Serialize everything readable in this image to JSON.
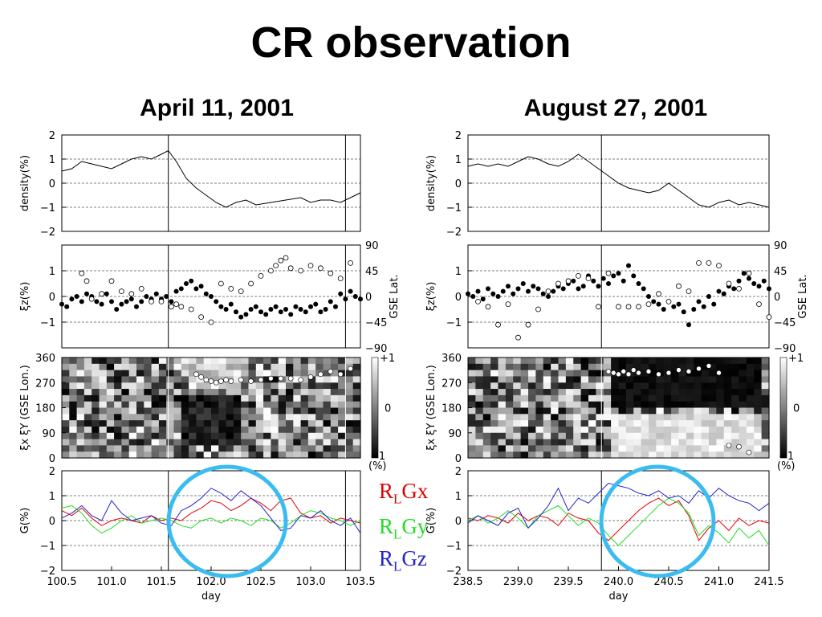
{
  "title": "CR observation",
  "columns": [
    {
      "title": "April 11, 2001"
    },
    {
      "title": "August 27, 2001"
    }
  ],
  "legend": [
    {
      "prefix": "R",
      "sub": "L",
      "suffix": "Gx",
      "color": "#e00000"
    },
    {
      "prefix": "R",
      "sub": "L",
      "suffix": "Gy",
      "color": "#22dd22"
    },
    {
      "prefix": "R",
      "sub": "L",
      "suffix": "Gz",
      "color": "#2222cc"
    }
  ],
  "colors": {
    "circle": "#3bbcf0"
  },
  "chart_data": [
    {
      "type": "line",
      "panel": "density",
      "ylabel": "density(%)",
      "ylim": [
        -2,
        2
      ],
      "yticks": [
        2,
        1,
        0,
        -1,
        -2
      ],
      "xlim": [
        100.5,
        103.5
      ],
      "vlines": [
        101.57,
        103.35
      ],
      "x": [
        100.5,
        100.6,
        100.7,
        100.8,
        100.9,
        101.0,
        101.1,
        101.2,
        101.3,
        101.4,
        101.5,
        101.57,
        101.65,
        101.75,
        101.85,
        101.95,
        102.05,
        102.15,
        102.25,
        102.35,
        102.45,
        102.6,
        102.75,
        102.9,
        103.0,
        103.1,
        103.2,
        103.3,
        103.4,
        103.5
      ],
      "y": [
        0.5,
        0.6,
        0.9,
        0.8,
        0.7,
        0.6,
        0.8,
        1.0,
        1.1,
        1.0,
        1.2,
        1.35,
        0.9,
        0.2,
        -0.2,
        -0.5,
        -0.8,
        -1.0,
        -0.8,
        -0.7,
        -0.9,
        -0.8,
        -0.7,
        -0.6,
        -0.8,
        -0.7,
        -0.7,
        -0.8,
        -0.6,
        -0.4
      ]
    },
    {
      "type": "scatter",
      "panel": "xi_z",
      "ylabel": "ξz(%)",
      "y2label": "GSE Lat.",
      "ylim": [
        -2,
        2
      ],
      "yticks": [
        1,
        0,
        -1
      ],
      "y2ticks": [
        "90",
        "45",
        "0",
        "−45",
        "−90"
      ],
      "xlim": [
        100.5,
        103.5
      ],
      "vlines": [
        101.57,
        103.35
      ],
      "filled": {
        "x": [
          100.5,
          100.55,
          100.6,
          100.65,
          100.7,
          100.75,
          100.8,
          100.85,
          100.9,
          100.95,
          101.0,
          101.05,
          101.1,
          101.15,
          101.2,
          101.25,
          101.3,
          101.35,
          101.4,
          101.45,
          101.5,
          101.55,
          101.6,
          101.65,
          101.7,
          101.75,
          101.8,
          101.85,
          101.9,
          101.95,
          102.0,
          102.05,
          102.1,
          102.15,
          102.2,
          102.25,
          102.3,
          102.35,
          102.4,
          102.45,
          102.5,
          102.55,
          102.6,
          102.65,
          102.7,
          102.75,
          102.8,
          102.85,
          102.9,
          102.95,
          103.0,
          103.05,
          103.1,
          103.15,
          103.2,
          103.25,
          103.3,
          103.35,
          103.4,
          103.45,
          103.5
        ],
        "y": [
          -0.3,
          -0.4,
          -0.1,
          0.0,
          -0.2,
          0.1,
          0.0,
          -0.2,
          -0.3,
          0.1,
          -0.2,
          -0.5,
          -0.3,
          -0.2,
          -0.1,
          -0.4,
          -0.2,
          0.0,
          -0.1,
          0.1,
          -0.1,
          0.0,
          -0.2,
          0.2,
          0.3,
          0.5,
          0.6,
          0.3,
          0.4,
          0.1,
          0.0,
          -0.2,
          -0.4,
          -0.5,
          -0.3,
          -0.6,
          -0.8,
          -0.7,
          -0.5,
          -0.4,
          -0.6,
          -0.7,
          -0.5,
          -0.4,
          -0.6,
          -0.5,
          -0.7,
          -0.4,
          -0.5,
          -0.6,
          -0.4,
          -0.3,
          -0.6,
          -0.5,
          -0.2,
          -0.4,
          0.1,
          -0.1,
          0.2,
          0.0,
          -0.1
        ]
      },
      "open": {
        "x": [
          100.7,
          100.75,
          100.8,
          100.9,
          101.0,
          101.1,
          101.2,
          101.3,
          101.4,
          101.5,
          101.6,
          101.65,
          101.7,
          101.8,
          101.9,
          102.0,
          102.1,
          102.2,
          102.3,
          102.4,
          102.5,
          102.6,
          102.65,
          102.7,
          102.75,
          102.8,
          102.9,
          103.0,
          103.1,
          103.2,
          103.3,
          103.4
        ],
        "y": [
          0.9,
          0.6,
          -0.1,
          0.1,
          0.6,
          0.2,
          0.1,
          0.3,
          -0.2,
          -0.2,
          -0.4,
          -0.3,
          -0.4,
          -0.5,
          -0.8,
          -1.0,
          0.5,
          0.3,
          0.2,
          0.5,
          0.8,
          1.0,
          1.2,
          1.4,
          1.5,
          1.1,
          1.0,
          1.2,
          1.1,
          0.9,
          0.7,
          1.3
        ]
      }
    },
    {
      "type": "heatmap",
      "panel": "xi_xy",
      "ylabel": "ξx ξY (GSE Lon.)",
      "ylim": [
        0,
        360
      ],
      "yticks": [
        360,
        270,
        180,
        90,
        0
      ],
      "colorbar": {
        "max": "+1",
        "mid": "0",
        "min": "−1",
        "unit": "(%)"
      },
      "xlim": [
        100.5,
        103.5
      ],
      "vlines": [
        101.57,
        103.35
      ],
      "circles": {
        "x": [
          101.85,
          101.9,
          101.95,
          102.0,
          102.05,
          102.1,
          102.15,
          102.2,
          102.3,
          102.4,
          102.5,
          102.6,
          102.7,
          102.8,
          102.9,
          103.0,
          103.1,
          103.2,
          103.3,
          103.4
        ],
        "y": [
          300,
          290,
          280,
          275,
          270,
          275,
          280,
          275,
          280,
          275,
          280,
          285,
          285,
          285,
          280,
          290,
          300,
          310,
          300,
          320
        ]
      }
    },
    {
      "type": "line",
      "panel": "G",
      "ylabel": "G(%)",
      "xlabel": "day",
      "ylim": [
        -2,
        2
      ],
      "yticks": [
        2,
        1,
        0,
        -1,
        -2
      ],
      "xlim": [
        100.5,
        103.5
      ],
      "xticks": [
        "100.5",
        "101.0",
        "101.5",
        "102.0",
        "102.5",
        "103.0",
        "103.5"
      ],
      "vlines": [
        101.57,
        103.35
      ],
      "x": [
        100.5,
        100.6,
        100.7,
        100.8,
        100.9,
        101.0,
        101.1,
        101.2,
        101.3,
        101.4,
        101.5,
        101.6,
        101.7,
        101.8,
        101.9,
        102.0,
        102.1,
        102.2,
        102.3,
        102.4,
        102.5,
        102.6,
        102.7,
        102.8,
        102.9,
        103.0,
        103.1,
        103.2,
        103.3,
        103.4,
        103.5
      ],
      "series": [
        {
          "name": "RLGx",
          "values": [
            0.4,
            0.2,
            0.5,
            0.1,
            -0.2,
            0.0,
            0.1,
            0.0,
            -0.1,
            0.2,
            0.0,
            0.1,
            0.0,
            0.3,
            0.5,
            0.8,
            0.7,
            0.4,
            0.6,
            0.9,
            0.7,
            0.4,
            0.8,
            0.9,
            0.3,
            0.1,
            0.2,
            -0.1,
            0.1,
            0.0,
            -0.1
          ]
        },
        {
          "name": "RLGy",
          "values": [
            0.5,
            0.6,
            0.3,
            -0.2,
            -0.5,
            -0.3,
            0.0,
            0.2,
            -0.1,
            0.0,
            0.1,
            0.0,
            -0.2,
            -0.3,
            0.0,
            0.1,
            -0.1,
            0.1,
            0.0,
            -0.2,
            0.1,
            0.0,
            -0.3,
            -0.1,
            0.2,
            0.4,
            0.3,
            0.1,
            0.0,
            -0.2,
            0.0
          ]
        },
        {
          "name": "RLGz",
          "values": [
            0.1,
            0.3,
            0.6,
            0.2,
            0.0,
            0.8,
            0.3,
            0.0,
            0.1,
            0.2,
            -0.1,
            -0.2,
            0.4,
            0.6,
            0.9,
            1.3,
            1.1,
            0.8,
            1.2,
            0.9,
            0.6,
            0.1,
            -0.4,
            -0.3,
            0.2,
            0.1,
            0.4,
            0.0,
            -0.2,
            0.1,
            -0.5
          ]
        }
      ]
    },
    {
      "type": "line",
      "panel": "density",
      "ylabel": "density(%)",
      "ylim": [
        -2,
        2
      ],
      "yticks": [
        2,
        1,
        0,
        -1,
        -2
      ],
      "xlim": [
        238.5,
        241.5
      ],
      "vlines": [
        239.83
      ],
      "x": [
        238.5,
        238.6,
        238.7,
        238.8,
        238.9,
        239.0,
        239.1,
        239.2,
        239.3,
        239.4,
        239.5,
        239.6,
        239.7,
        239.8,
        239.9,
        240.0,
        240.1,
        240.2,
        240.3,
        240.4,
        240.5,
        240.6,
        240.7,
        240.8,
        240.9,
        241.0,
        241.1,
        241.2,
        241.3,
        241.4,
        241.5
      ],
      "y": [
        0.7,
        0.8,
        0.7,
        0.8,
        0.7,
        0.9,
        1.1,
        1.0,
        0.8,
        0.7,
        0.9,
        1.2,
        0.9,
        0.6,
        0.3,
        0.0,
        -0.2,
        -0.3,
        -0.4,
        -0.3,
        0.0,
        -0.3,
        -0.6,
        -0.9,
        -1.0,
        -0.8,
        -0.7,
        -0.9,
        -0.8,
        -0.9,
        -1.0
      ]
    },
    {
      "type": "scatter",
      "panel": "xi_z",
      "ylabel": "ξz(%)",
      "y2label": "GSE Lat.",
      "ylim": [
        -2,
        2
      ],
      "yticks": [
        1,
        0,
        -1
      ],
      "y2ticks": [
        "90",
        "45",
        "0",
        "−45",
        "−90"
      ],
      "xlim": [
        238.5,
        241.5
      ],
      "vlines": [
        239.83
      ],
      "filled": {
        "x": [
          238.5,
          238.55,
          238.6,
          238.65,
          238.7,
          238.75,
          238.8,
          238.85,
          238.9,
          238.95,
          239.0,
          239.05,
          239.1,
          239.15,
          239.2,
          239.25,
          239.3,
          239.35,
          239.4,
          239.45,
          239.5,
          239.55,
          239.6,
          239.65,
          239.7,
          239.75,
          239.8,
          239.85,
          239.9,
          239.95,
          240.0,
          240.05,
          240.1,
          240.15,
          240.2,
          240.25,
          240.3,
          240.35,
          240.4,
          240.45,
          240.5,
          240.55,
          240.6,
          240.65,
          240.7,
          240.75,
          240.8,
          240.85,
          240.9,
          240.95,
          241.0,
          241.05,
          241.1,
          241.15,
          241.2,
          241.25,
          241.3,
          241.35,
          241.4,
          241.45,
          241.5
        ],
        "y": [
          0.1,
          0.0,
          0.2,
          -0.1,
          0.3,
          0.1,
          0.0,
          0.2,
          0.4,
          0.1,
          0.3,
          0.5,
          0.2,
          0.4,
          0.3,
          0.1,
          0.0,
          0.2,
          0.4,
          0.3,
          0.5,
          0.6,
          0.3,
          0.4,
          0.8,
          0.6,
          0.4,
          0.7,
          0.5,
          0.8,
          0.9,
          0.6,
          1.2,
          0.8,
          0.5,
          0.3,
          0.0,
          -0.2,
          -0.3,
          -0.5,
          -0.2,
          -0.4,
          -0.3,
          -0.6,
          -1.1,
          -0.5,
          -0.2,
          -0.4,
          0.0,
          -0.3,
          0.2,
          0.1,
          0.4,
          0.3,
          0.6,
          0.9,
          0.7,
          0.5,
          0.4,
          0.6,
          0.3
        ]
      },
      "open": {
        "x": [
          238.6,
          238.7,
          238.8,
          238.9,
          239.0,
          239.1,
          239.2,
          239.3,
          239.4,
          239.5,
          239.6,
          239.7,
          239.8,
          239.9,
          240.0,
          240.1,
          240.2,
          240.3,
          240.4,
          240.5,
          240.6,
          240.7,
          240.8,
          240.9,
          241.0,
          241.1,
          241.2,
          241.3,
          241.4,
          241.5
        ],
        "y": [
          -0.2,
          -0.4,
          -1.1,
          -0.3,
          -1.6,
          -1.1,
          -0.5,
          0.2,
          0.5,
          0.6,
          0.8,
          0.7,
          -0.4,
          0.9,
          -0.4,
          -0.4,
          -0.4,
          -0.3,
          0.1,
          -0.2,
          0.4,
          0.2,
          1.3,
          1.3,
          1.2,
          0.5,
          0.3,
          0.9,
          -0.3,
          -0.8
        ]
      }
    },
    {
      "type": "heatmap",
      "panel": "xi_xy",
      "ylabel": "ξx ξY (GSE Lon.)",
      "ylim": [
        0,
        360
      ],
      "yticks": [
        360,
        270,
        180,
        90,
        0
      ],
      "colorbar": {
        "max": "+1",
        "mid": "0",
        "min": "−1",
        "unit": "(%)"
      },
      "xlim": [
        238.5,
        241.5
      ],
      "vlines": [
        239.83
      ],
      "circles": {
        "x": [
          239.9,
          239.95,
          240.0,
          240.05,
          240.1,
          240.15,
          240.2,
          240.3,
          240.4,
          240.5,
          240.6,
          240.7,
          240.8,
          240.9,
          241.0,
          241.1,
          241.2,
          241.3
        ],
        "y": [
          310,
          305,
          300,
          310,
          300,
          315,
          305,
          310,
          300,
          305,
          315,
          310,
          320,
          330,
          305,
          45,
          40,
          20
        ]
      }
    },
    {
      "type": "line",
      "panel": "G",
      "ylabel": "G(%)",
      "xlabel": "day",
      "ylim": [
        -2,
        2
      ],
      "yticks": [
        2,
        1,
        0,
        -1,
        -2
      ],
      "xlim": [
        238.5,
        241.5
      ],
      "xticks": [
        "238.5",
        "239.0",
        "239.5",
        "240.0",
        "240.5",
        "241.0",
        "241.5"
      ],
      "vlines": [
        239.83
      ],
      "x": [
        238.5,
        238.6,
        238.7,
        238.8,
        238.9,
        239.0,
        239.1,
        239.2,
        239.3,
        239.4,
        239.5,
        239.6,
        239.7,
        239.8,
        239.9,
        240.0,
        240.1,
        240.2,
        240.3,
        240.4,
        240.5,
        240.6,
        240.7,
        240.8,
        240.9,
        241.0,
        241.1,
        241.2,
        241.3,
        241.4,
        241.5
      ],
      "series": [
        {
          "name": "RLGx",
          "values": [
            0.1,
            0.0,
            0.2,
            0.1,
            -0.1,
            0.3,
            0.0,
            0.2,
            0.1,
            -0.2,
            0.3,
            0.1,
            0.0,
            -0.5,
            -0.8,
            -0.4,
            0.0,
            0.4,
            0.7,
            0.9,
            0.6,
            0.8,
            0.2,
            -0.8,
            -0.3,
            0.0,
            -0.4,
            0.1,
            -0.2,
            0.0,
            -0.1
          ]
        },
        {
          "name": "RLGy",
          "values": [
            0.0,
            0.2,
            -0.1,
            0.1,
            0.4,
            0.1,
            -0.3,
            0.2,
            0.4,
            0.6,
            0.2,
            -0.2,
            0.1,
            -0.1,
            -0.6,
            -1.0,
            -0.6,
            -0.2,
            0.2,
            0.6,
            0.9,
            0.7,
            0.3,
            -0.6,
            -0.2,
            -0.5,
            -0.9,
            -0.3,
            -0.7,
            -0.4,
            -1.0
          ]
        },
        {
          "name": "RLGz",
          "values": [
            -0.1,
            0.2,
            0.0,
            -0.2,
            0.3,
            0.5,
            -0.3,
            0.1,
            0.6,
            1.3,
            0.4,
            0.9,
            0.7,
            1.1,
            1.5,
            1.4,
            1.3,
            1.1,
            1.0,
            1.2,
            0.9,
            1.0,
            0.7,
            1.2,
            0.9,
            1.3,
            1.0,
            0.8,
            0.7,
            0.4,
            0.7
          ]
        }
      ]
    }
  ]
}
